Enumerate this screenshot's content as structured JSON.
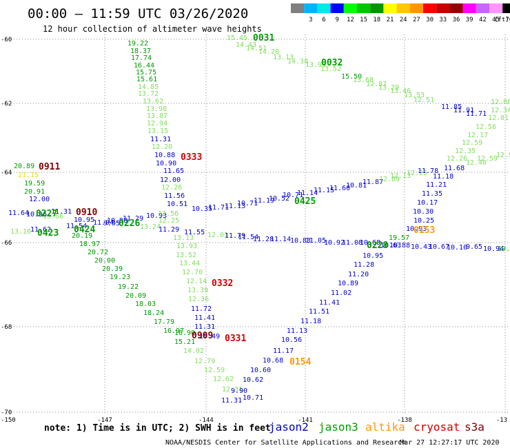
{
  "header": {
    "title": "00:00 – 11:59 UTC 03/26/2020",
    "subtitle": "12 hour collection of altimeter wave heights"
  },
  "legend": {
    "unit": "(ft)",
    "bins": [
      {
        "label": "",
        "color": "#808080"
      },
      {
        "label": "3",
        "color": "#00b4ff"
      },
      {
        "label": "6",
        "color": "#00e8e8"
      },
      {
        "label": "9",
        "color": "#0000ff"
      },
      {
        "label": "12",
        "color": "#00ff00"
      },
      {
        "label": "15",
        "color": "#00c800"
      },
      {
        "label": "18",
        "color": "#009600"
      },
      {
        "label": "21",
        "color": "#ffff00"
      },
      {
        "label": "24",
        "color": "#ffc800"
      },
      {
        "label": "27",
        "color": "#ff9600"
      },
      {
        "label": "30",
        "color": "#ff0000"
      },
      {
        "label": "33",
        "color": "#c80000"
      },
      {
        "label": "36",
        "color": "#960000"
      },
      {
        "label": "39",
        "color": "#ff00ff"
      },
      {
        "label": "42",
        "color": "#c864ff"
      },
      {
        "label": "45",
        "color": "#ff96ff"
      },
      {
        "label": "70",
        "color": "#000000"
      }
    ]
  },
  "axes": {
    "lat_labels": [
      "-60",
      "-62",
      "-64",
      "-66",
      "-68",
      "-70"
    ],
    "lon_labels": [
      "-150",
      "-147",
      "-144",
      "-141",
      "-138",
      "-13"
    ]
  },
  "colors": {
    "jason2": "#0000cc",
    "jason3": "#009900",
    "altika": "#ff9900",
    "cryosat": "#cc0000",
    "s3a": "#800000",
    "swh_low": "#7ddf5a",
    "swh_mid": "#009900"
  },
  "tracks": [
    {
      "satellite": "jason3",
      "pass": "0031",
      "color": "#009900"
    },
    {
      "satellite": "jason3",
      "pass": "0032",
      "color": "#009900"
    },
    {
      "satellite": "cryosat",
      "pass": "0333",
      "color": "#cc0000"
    },
    {
      "satellite": "s3a",
      "pass": "0911",
      "color": "#800000"
    },
    {
      "satellite": "s3a",
      "pass": "0910",
      "color": "#800000"
    },
    {
      "satellite": "jason3",
      "pass": "0227",
      "color": "#009900"
    },
    {
      "satellite": "jason3",
      "pass": "0423",
      "color": "#009900"
    },
    {
      "satellite": "jason3",
      "pass": "0424",
      "color": "#009900"
    },
    {
      "satellite": "jason3",
      "pass": "0226",
      "color": "#009900"
    },
    {
      "satellite": "jason3",
      "pass": "0425",
      "color": "#009900"
    },
    {
      "satellite": "altika",
      "pass": "0153",
      "color": "#ff9900"
    },
    {
      "satellite": "cryosat",
      "pass": "0332",
      "color": "#cc0000"
    },
    {
      "satellite": "jason3",
      "pass": "0228",
      "color": "#009900"
    },
    {
      "satellite": "s3a",
      "pass": "0909",
      "color": "#800000"
    },
    {
      "satellite": "cryosat",
      "pass": "0331",
      "color": "#cc0000"
    },
    {
      "satellite": "altika",
      "pass": "0154",
      "color": "#ff9900"
    }
  ],
  "observations": [
    {
      "v": "15.45",
      "c": "#7ddf5a"
    },
    {
      "v": "14.43",
      "c": "#7ddf5a"
    },
    {
      "v": "14.51",
      "c": "#7ddf5a"
    },
    {
      "v": "14.20",
      "c": "#7ddf5a"
    },
    {
      "v": "13.13",
      "c": "#7ddf5a"
    },
    {
      "v": "14.38",
      "c": "#7ddf5a"
    },
    {
      "v": "13.93",
      "c": "#7ddf5a"
    },
    {
      "v": "13.52",
      "c": "#7ddf5a"
    },
    {
      "v": "15.50",
      "c": "#009900"
    },
    {
      "v": "13.68",
      "c": "#7ddf5a"
    },
    {
      "v": "12.87",
      "c": "#7ddf5a"
    },
    {
      "v": "13.29",
      "c": "#7ddf5a"
    },
    {
      "v": "13.46",
      "c": "#7ddf5a"
    },
    {
      "v": "13.53",
      "c": "#7ddf5a"
    },
    {
      "v": "12.51",
      "c": "#7ddf5a"
    },
    {
      "v": "11.85",
      "c": "#0000cc"
    },
    {
      "v": "11.91",
      "c": "#0000cc"
    },
    {
      "v": "11.71",
      "c": "#0000cc"
    },
    {
      "v": "12.88",
      "c": "#7ddf5a"
    },
    {
      "v": "12.34",
      "c": "#7ddf5a"
    },
    {
      "v": "12.81",
      "c": "#7ddf5a"
    },
    {
      "v": "12.56",
      "c": "#7ddf5a"
    },
    {
      "v": "12.17",
      "c": "#7ddf5a"
    },
    {
      "v": "12.59",
      "c": "#7ddf5a"
    },
    {
      "v": "12.35",
      "c": "#7ddf5a"
    },
    {
      "v": "12.26",
      "c": "#7ddf5a"
    },
    {
      "v": "12.40",
      "c": "#7ddf5a"
    },
    {
      "v": "12.59",
      "c": "#7ddf5a"
    },
    {
      "v": "12.93",
      "c": "#7ddf5a"
    },
    {
      "v": "19.22",
      "c": "#009900"
    },
    {
      "v": "18.37",
      "c": "#009900"
    },
    {
      "v": "17.74",
      "c": "#009900"
    },
    {
      "v": "16.44",
      "c": "#009900"
    },
    {
      "v": "15.75",
      "c": "#009900"
    },
    {
      "v": "15.61",
      "c": "#009900"
    },
    {
      "v": "14.85",
      "c": "#7ddf5a"
    },
    {
      "v": "13.72",
      "c": "#7ddf5a"
    },
    {
      "v": "13.62",
      "c": "#7ddf5a"
    },
    {
      "v": "13.98",
      "c": "#7ddf5a"
    },
    {
      "v": "13.87",
      "c": "#7ddf5a"
    },
    {
      "v": "12.94",
      "c": "#7ddf5a"
    },
    {
      "v": "13.15",
      "c": "#7ddf5a"
    },
    {
      "v": "11.31",
      "c": "#0000cc"
    },
    {
      "v": "12.20",
      "c": "#7ddf5a"
    },
    {
      "v": "10.88",
      "c": "#0000cc"
    },
    {
      "v": "10.90",
      "c": "#0000cc"
    },
    {
      "v": "11.65",
      "c": "#0000cc"
    },
    {
      "v": "12.00",
      "c": "#0000cc"
    },
    {
      "v": "12.26",
      "c": "#7ddf5a"
    },
    {
      "v": "11.56",
      "c": "#0000cc"
    },
    {
      "v": "10.51",
      "c": "#0000cc"
    },
    {
      "v": "10.35",
      "c": "#0000cc"
    },
    {
      "v": "11.71",
      "c": "#0000cc"
    },
    {
      "v": "11.13",
      "c": "#0000cc"
    },
    {
      "v": "10.71",
      "c": "#0000cc"
    },
    {
      "v": "11.19",
      "c": "#0000cc"
    },
    {
      "v": "10.52",
      "c": "#0000cc"
    },
    {
      "v": "10.71",
      "c": "#0000cc"
    },
    {
      "v": "11.14",
      "c": "#0000cc"
    },
    {
      "v": "11.15",
      "c": "#0000cc"
    },
    {
      "v": "11.60",
      "c": "#0000cc"
    },
    {
      "v": "10.81",
      "c": "#0000cc"
    },
    {
      "v": "11.87",
      "c": "#0000cc"
    },
    {
      "v": "12.89",
      "c": "#7ddf5a"
    },
    {
      "v": "12.13",
      "c": "#7ddf5a"
    },
    {
      "v": "12.25",
      "c": "#7ddf5a"
    },
    {
      "v": "11.78",
      "c": "#0000cc"
    },
    {
      "v": "11.68",
      "c": "#0000cc"
    },
    {
      "v": "11.18",
      "c": "#0000cc"
    },
    {
      "v": "11.21",
      "c": "#0000cc"
    },
    {
      "v": "11.35",
      "c": "#0000cc"
    },
    {
      "v": "10.17",
      "c": "#0000cc"
    },
    {
      "v": "10.30",
      "c": "#0000cc"
    },
    {
      "v": "10.25",
      "c": "#0000cc"
    },
    {
      "v": "10.93",
      "c": "#0000cc"
    },
    {
      "v": "19.57",
      "c": "#009900"
    },
    {
      "v": "20.89",
      "c": "#009900"
    },
    {
      "v": "21.15",
      "c": "#e6e600"
    },
    {
      "v": "19.59",
      "c": "#009900"
    },
    {
      "v": "20.91",
      "c": "#009900"
    },
    {
      "v": "12.00",
      "c": "#0000cc"
    },
    {
      "v": "11.64",
      "c": "#0000cc"
    },
    {
      "v": "10.96",
      "c": "#0000cc"
    },
    {
      "v": "13.66",
      "c": "#7ddf5a"
    },
    {
      "v": "11.31",
      "c": "#0000cc"
    },
    {
      "v": "10.95",
      "c": "#0000cc"
    },
    {
      "v": "11.04",
      "c": "#0000cc"
    },
    {
      "v": "10.98",
      "c": "#0000cc"
    },
    {
      "v": "11.29",
      "c": "#0000cc"
    },
    {
      "v": "10.93",
      "c": "#0000cc"
    },
    {
      "v": "12.56",
      "c": "#7ddf5a"
    },
    {
      "v": "12.25",
      "c": "#7ddf5a"
    },
    {
      "v": "13.24",
      "c": "#7ddf5a"
    },
    {
      "v": "13.10",
      "c": "#7ddf5a"
    },
    {
      "v": "11.62",
      "c": "#0000cc"
    },
    {
      "v": "11.54",
      "c": "#0000cc"
    },
    {
      "v": "9.95",
      "c": "#0000cc"
    },
    {
      "v": "11.29",
      "c": "#0000cc"
    },
    {
      "v": "11.55",
      "c": "#0000cc"
    },
    {
      "v": "12.01",
      "c": "#7ddf5a"
    },
    {
      "v": "11.79",
      "c": "#0000cc"
    },
    {
      "v": "11.54",
      "c": "#0000cc"
    },
    {
      "v": "11.28",
      "c": "#0000cc"
    },
    {
      "v": "11.14",
      "c": "#0000cc"
    },
    {
      "v": "10.83",
      "c": "#0000cc"
    },
    {
      "v": "11.05",
      "c": "#0000cc"
    },
    {
      "v": "10.92",
      "c": "#0000cc"
    },
    {
      "v": "11.08",
      "c": "#0000cc"
    },
    {
      "v": "10.68",
      "c": "#0000cc"
    },
    {
      "v": "10.63",
      "c": "#0000cc"
    },
    {
      "v": "10.88",
      "c": "#0000cc"
    },
    {
      "v": "10.43",
      "c": "#0000cc"
    },
    {
      "v": "10.67",
      "c": "#0000cc"
    },
    {
      "v": "10.10",
      "c": "#0000cc"
    },
    {
      "v": "9.65",
      "c": "#0000cc"
    },
    {
      "v": "10.94",
      "c": "#0000cc"
    },
    {
      "v": "19.00",
      "c": "#009900"
    },
    {
      "v": "20.19",
      "c": "#009900"
    },
    {
      "v": "18.97",
      "c": "#009900"
    },
    {
      "v": "20.72",
      "c": "#009900"
    },
    {
      "v": "20.00",
      "c": "#009900"
    },
    {
      "v": "20.39",
      "c": "#009900"
    },
    {
      "v": "19.23",
      "c": "#009900"
    },
    {
      "v": "19.22",
      "c": "#009900"
    },
    {
      "v": "20.09",
      "c": "#009900"
    },
    {
      "v": "18.03",
      "c": "#009900"
    },
    {
      "v": "18.24",
      "c": "#009900"
    },
    {
      "v": "17.79",
      "c": "#009900"
    },
    {
      "v": "16.97",
      "c": "#009900"
    },
    {
      "v": "16.90",
      "c": "#009900"
    },
    {
      "v": "15.21",
      "c": "#009900"
    },
    {
      "v": "14.02",
      "c": "#7ddf5a"
    },
    {
      "v": "12.79",
      "c": "#7ddf5a"
    },
    {
      "v": "12.59",
      "c": "#7ddf5a"
    },
    {
      "v": "12.62",
      "c": "#7ddf5a"
    },
    {
      "v": "12.31",
      "c": "#7ddf5a"
    },
    {
      "v": "13.13",
      "c": "#7ddf5a"
    },
    {
      "v": "13.93",
      "c": "#7ddf5a"
    },
    {
      "v": "13.52",
      "c": "#7ddf5a"
    },
    {
      "v": "13.44",
      "c": "#7ddf5a"
    },
    {
      "v": "12.70",
      "c": "#7ddf5a"
    },
    {
      "v": "12.14",
      "c": "#7ddf5a"
    },
    {
      "v": "13.39",
      "c": "#7ddf5a"
    },
    {
      "v": "12.36",
      "c": "#7ddf5a"
    },
    {
      "v": "11.72",
      "c": "#0000cc"
    },
    {
      "v": "11.41",
      "c": "#0000cc"
    },
    {
      "v": "11.31",
      "c": "#0000cc"
    },
    {
      "v": "10.49",
      "c": "#0000cc"
    },
    {
      "v": "10.95",
      "c": "#0000cc"
    },
    {
      "v": "11.28",
      "c": "#0000cc"
    },
    {
      "v": "11.20",
      "c": "#0000cc"
    },
    {
      "v": "10.89",
      "c": "#0000cc"
    },
    {
      "v": "11.02",
      "c": "#0000cc"
    },
    {
      "v": "11.41",
      "c": "#0000cc"
    },
    {
      "v": "11.51",
      "c": "#0000cc"
    },
    {
      "v": "11.18",
      "c": "#0000cc"
    },
    {
      "v": "11.13",
      "c": "#0000cc"
    },
    {
      "v": "10.56",
      "c": "#0000cc"
    },
    {
      "v": "11.17",
      "c": "#0000cc"
    },
    {
      "v": "10.68",
      "c": "#0000cc"
    },
    {
      "v": "10.60",
      "c": "#0000cc"
    },
    {
      "v": "10.62",
      "c": "#0000cc"
    },
    {
      "v": "9.90",
      "c": "#0000cc"
    },
    {
      "v": "11.31",
      "c": "#0000cc"
    },
    {
      "v": "10.71",
      "c": "#0000cc"
    }
  ],
  "footer": {
    "note": "note: 1) Time is in UTC; 2) SWH is in feet",
    "satellites": [
      {
        "name": "jason2",
        "color": "#0000cc"
      },
      {
        "name": "jason3",
        "color": "#009900"
      },
      {
        "name": "altika",
        "color": "#ff9900"
      },
      {
        "name": "cryosat",
        "color": "#cc0000"
      },
      {
        "name": "s3a",
        "color": "#800000"
      }
    ],
    "credit": "NOAA/NESDIS Center for Satellite Applications and Research",
    "timestamp": "Mar 27 12:27:17 UTC 2020"
  }
}
